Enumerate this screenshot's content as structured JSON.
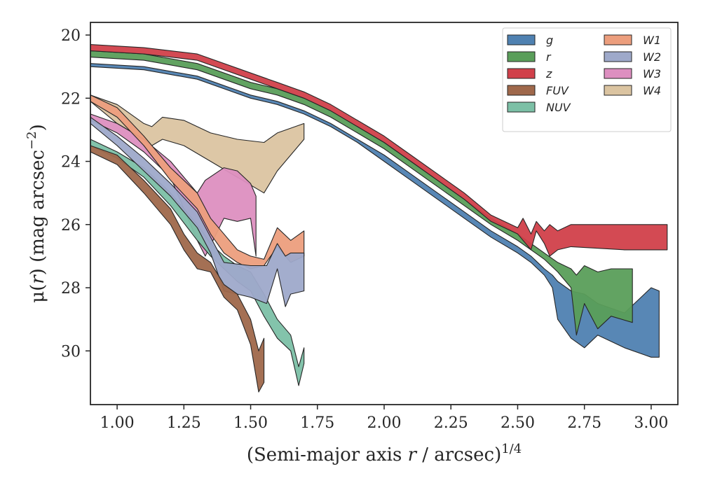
{
  "chart_data": {
    "type": "area",
    "xlabel": "(Semi-major axis r / arcsec)^1/4",
    "xlabel_parts": {
      "pre": "(Semi-major axis ",
      "var": "r",
      "post": " / arcsec)",
      "sup": "1/4"
    },
    "ylabel": "μ(r) (mag arcsec^-2)",
    "ylabel_parts": {
      "pre": "μ(",
      "var": "r",
      "post": ") (mag arcsec",
      "sup": "−2",
      "end": ")"
    },
    "xlim": [
      0.9,
      3.1
    ],
    "ylim": [
      31.7,
      19.6
    ],
    "y_inverted": true,
    "grid": false,
    "legend_placement": "top-right",
    "legend_columns": 2,
    "xticks": [
      1.0,
      1.25,
      1.5,
      1.75,
      2.0,
      2.25,
      2.5,
      2.75,
      3.0
    ],
    "xtick_labels": [
      "1.00",
      "1.25",
      "1.50",
      "1.75",
      "2.00",
      "2.25",
      "2.50",
      "2.75",
      "3.00"
    ],
    "yticks": [
      20,
      22,
      24,
      26,
      28,
      30
    ],
    "ytick_labels": [
      "20",
      "22",
      "24",
      "26",
      "28",
      "30"
    ],
    "series": [
      {
        "name": "W4",
        "color": "#dbc4a1",
        "x": [
          0.9,
          1.0,
          1.1,
          1.13,
          1.17,
          1.25,
          1.35,
          1.45,
          1.55,
          1.6,
          1.7
        ],
        "y_upper": [
          21.9,
          22.2,
          22.8,
          22.9,
          22.6,
          22.7,
          23.1,
          23.3,
          23.4,
          23.1,
          22.8
        ],
        "y_lower": [
          22.1,
          22.8,
          23.3,
          23.5,
          23.3,
          23.5,
          24.0,
          24.5,
          25.0,
          24.3,
          23.3
        ]
      },
      {
        "name": "W3",
        "color": "#dd8fc0",
        "x": [
          0.9,
          1.0,
          1.1,
          1.2,
          1.25,
          1.3,
          1.33,
          1.4,
          1.45,
          1.5,
          1.52
        ],
        "y_upper": [
          22.5,
          22.8,
          23.3,
          24.0,
          24.5,
          25.0,
          24.6,
          24.2,
          24.3,
          24.7,
          25.1
        ],
        "y_lower": [
          22.7,
          23.1,
          23.7,
          24.5,
          25.5,
          26.5,
          27.0,
          25.8,
          25.9,
          25.8,
          27.0
        ]
      },
      {
        "name": "W1",
        "color": "#ec9e7d",
        "x": [
          0.9,
          1.0,
          1.1,
          1.2,
          1.3,
          1.35,
          1.4,
          1.45,
          1.5,
          1.55,
          1.6,
          1.65,
          1.7
        ],
        "y_upper": [
          21.9,
          22.3,
          23.2,
          24.2,
          25.0,
          25.8,
          26.3,
          26.8,
          27.0,
          27.1,
          26.1,
          26.5,
          26.2
        ],
        "y_lower": [
          22.1,
          22.6,
          23.5,
          24.6,
          25.5,
          26.3,
          26.9,
          27.2,
          27.4,
          27.3,
          26.7,
          27.2,
          27.0
        ]
      },
      {
        "name": "NUV",
        "color": "#7cc0a6",
        "x": [
          0.9,
          1.0,
          1.1,
          1.2,
          1.3,
          1.35,
          1.4,
          1.45,
          1.5,
          1.55,
          1.6,
          1.65,
          1.68,
          1.7
        ],
        "y_upper": [
          23.3,
          23.7,
          24.2,
          25.0,
          26.0,
          26.6,
          27.0,
          27.3,
          27.5,
          28.2,
          29.0,
          29.5,
          30.5,
          29.9
        ],
        "y_lower": [
          23.5,
          23.9,
          24.5,
          25.4,
          26.5,
          27.0,
          27.4,
          27.8,
          28.1,
          28.9,
          29.6,
          30.0,
          31.1,
          30.4
        ]
      },
      {
        "name": "W2",
        "color": "#9ea9ca",
        "x": [
          0.9,
          1.0,
          1.1,
          1.2,
          1.3,
          1.35,
          1.4,
          1.5,
          1.56,
          1.6,
          1.63,
          1.65,
          1.7
        ],
        "y_upper": [
          22.6,
          23.2,
          23.9,
          24.7,
          25.6,
          26.4,
          27.2,
          27.3,
          27.3,
          26.6,
          27.0,
          26.9,
          26.9
        ],
        "y_lower": [
          22.8,
          23.5,
          24.3,
          25.1,
          26.1,
          26.9,
          28.1,
          28.3,
          28.5,
          27.4,
          28.6,
          28.2,
          28.1
        ]
      },
      {
        "name": "FUV",
        "color": "#9f684b",
        "x": [
          0.9,
          1.0,
          1.1,
          1.2,
          1.25,
          1.3,
          1.35,
          1.4,
          1.45,
          1.5,
          1.53,
          1.55
        ],
        "y_upper": [
          23.5,
          23.8,
          24.6,
          25.5,
          26.3,
          26.9,
          27.2,
          27.9,
          28.2,
          29.0,
          30.0,
          29.6
        ],
        "y_lower": [
          23.7,
          24.1,
          25.0,
          26.0,
          26.8,
          27.4,
          27.5,
          28.3,
          28.7,
          29.8,
          31.3,
          31.0
        ]
      },
      {
        "name": "g",
        "color": "#4f81b1",
        "x": [
          0.9,
          1.1,
          1.3,
          1.5,
          1.6,
          1.7,
          1.8,
          1.9,
          2.0,
          2.1,
          2.2,
          2.3,
          2.4,
          2.5,
          2.55,
          2.6,
          2.63,
          2.65,
          2.7,
          2.75,
          2.8,
          2.9,
          3.0,
          3.03
        ],
        "y_upper": [
          20.9,
          21.0,
          21.3,
          21.9,
          22.1,
          22.4,
          22.8,
          23.3,
          23.8,
          24.4,
          25.0,
          25.6,
          26.2,
          26.7,
          27.0,
          27.4,
          27.6,
          27.8,
          28.1,
          28.2,
          28.5,
          28.8,
          28.0,
          28.1
        ],
        "y_lower": [
          21.0,
          21.1,
          21.4,
          22.0,
          22.2,
          22.5,
          22.9,
          23.4,
          24.0,
          24.6,
          25.2,
          25.8,
          26.4,
          26.9,
          27.2,
          27.6,
          28.0,
          29.0,
          29.6,
          29.9,
          29.5,
          29.9,
          30.2,
          30.2
        ]
      },
      {
        "name": "r",
        "color": "#5a9e5a",
        "x": [
          0.9,
          1.1,
          1.3,
          1.5,
          1.6,
          1.7,
          1.8,
          1.9,
          2.0,
          2.1,
          2.2,
          2.3,
          2.4,
          2.5,
          2.55,
          2.6,
          2.65,
          2.7,
          2.72,
          2.75,
          2.8,
          2.85,
          2.93
        ],
        "y_upper": [
          20.5,
          20.6,
          20.9,
          21.5,
          21.7,
          22.0,
          22.4,
          22.9,
          23.4,
          24.0,
          24.6,
          25.2,
          25.8,
          26.3,
          26.6,
          26.9,
          27.2,
          27.4,
          27.6,
          27.3,
          27.5,
          27.4,
          27.4
        ],
        "y_lower": [
          20.7,
          20.8,
          21.1,
          21.7,
          21.9,
          22.2,
          22.6,
          23.1,
          23.6,
          24.2,
          24.8,
          25.4,
          26.0,
          26.5,
          26.8,
          27.1,
          27.5,
          28.0,
          29.5,
          28.5,
          29.3,
          28.9,
          29.1
        ]
      },
      {
        "name": "z",
        "color": "#d1404a",
        "x": [
          0.9,
          1.1,
          1.3,
          1.5,
          1.6,
          1.7,
          1.8,
          1.9,
          2.0,
          2.1,
          2.2,
          2.3,
          2.4,
          2.5,
          2.52,
          2.55,
          2.57,
          2.6,
          2.62,
          2.65,
          2.7,
          2.9,
          3.06
        ],
        "y_upper": [
          20.3,
          20.4,
          20.6,
          21.2,
          21.5,
          21.8,
          22.2,
          22.7,
          23.2,
          23.8,
          24.4,
          25.0,
          25.7,
          26.1,
          25.8,
          26.3,
          25.9,
          26.2,
          26.0,
          26.2,
          26.0,
          26.0,
          26.0
        ],
        "y_lower": [
          20.5,
          20.6,
          20.8,
          21.4,
          21.7,
          22.0,
          22.4,
          22.9,
          23.4,
          24.0,
          24.6,
          25.2,
          25.9,
          26.3,
          26.5,
          26.8,
          26.2,
          26.6,
          27.0,
          26.8,
          26.7,
          26.8,
          26.8
        ]
      }
    ],
    "legend_order": [
      "g",
      "r",
      "z",
      "FUV",
      "NUV",
      "W1",
      "W2",
      "W3",
      "W4"
    ]
  }
}
